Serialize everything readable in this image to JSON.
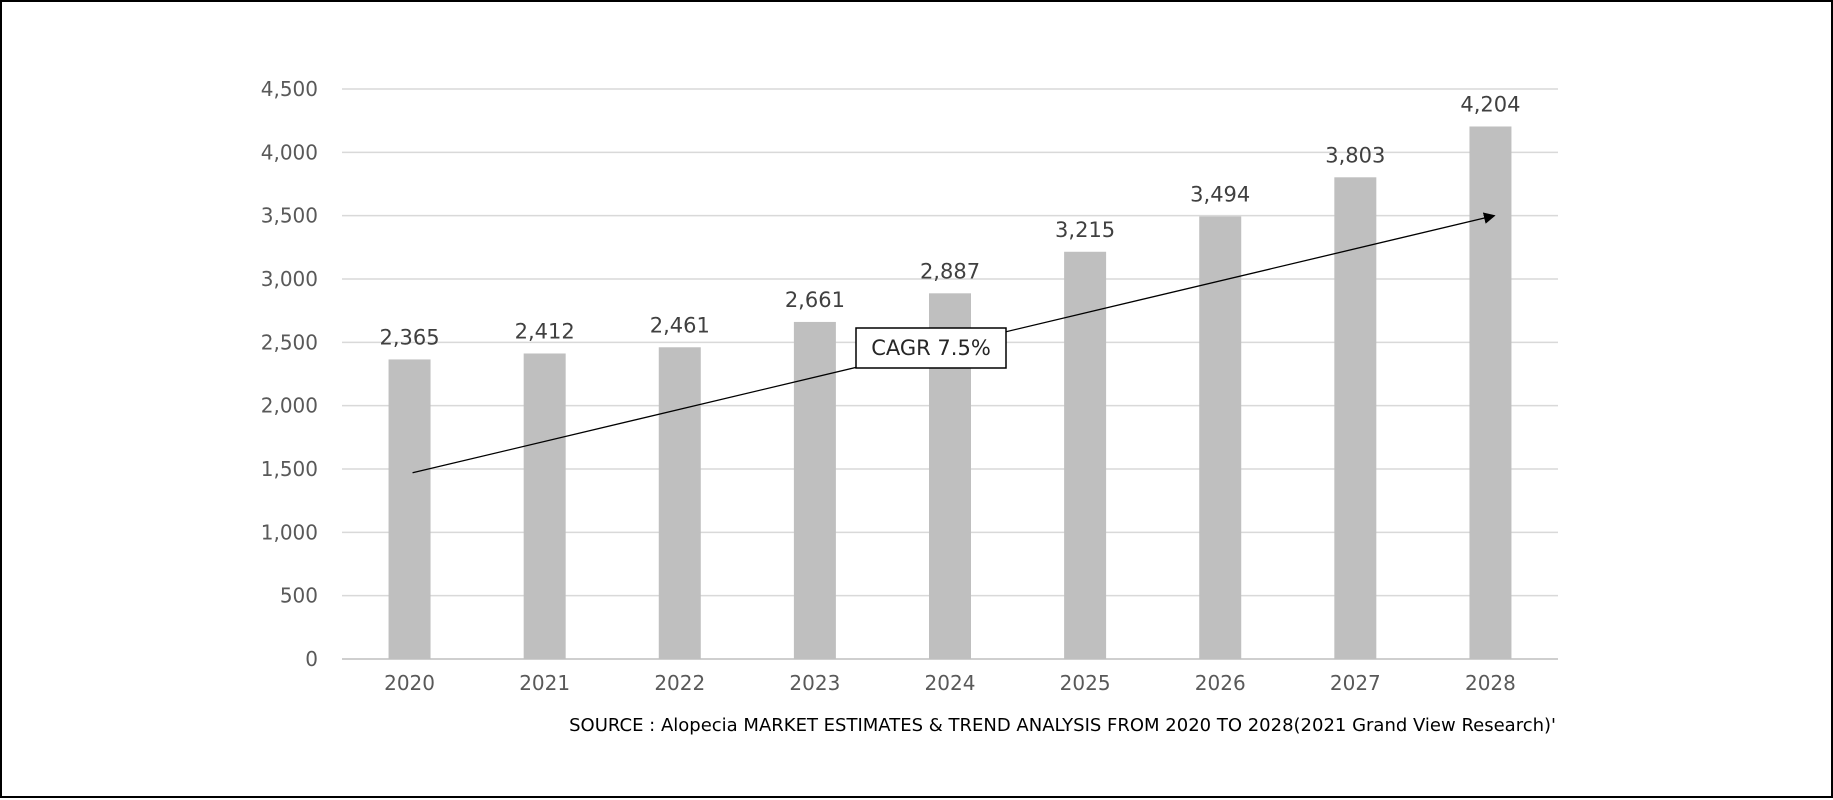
{
  "chart_data": {
    "type": "bar",
    "categories": [
      "2020",
      "2021",
      "2022",
      "2023",
      "2024",
      "2025",
      "2026",
      "2027",
      "2028"
    ],
    "values": [
      2365,
      2412,
      2461,
      2661,
      2887,
      3215,
      3494,
      3803,
      4204
    ],
    "data_labels": [
      "2,365",
      "2,412",
      "2,461",
      "2,661",
      "2,887",
      "3,215",
      "3,494",
      "3,803",
      "4,204"
    ],
    "y_ticks": [
      0,
      500,
      1000,
      1500,
      2000,
      2500,
      3000,
      3500,
      4000,
      4500
    ],
    "y_tick_labels": [
      "0",
      "500",
      "1,000",
      "1,500",
      "2,000",
      "2,500",
      "3,000",
      "3,500",
      "4,000",
      "4,500"
    ],
    "ylim": [
      0,
      4500
    ],
    "grid": true,
    "legend": "none",
    "title": "",
    "xlabel": "",
    "ylabel": "",
    "bar_color": "#bfbfbf",
    "annotation": {
      "text": "CAGR 7.5%",
      "arrow_from": {
        "x": "2020",
        "y": 1470
      },
      "arrow_to": {
        "x": "2028",
        "y": 3500
      }
    },
    "source": "SOURCE : Alopecia MARKET ESTIMATES & TREND ANALYSIS FROM 2020 TO 2028(2021 Grand View Research)'"
  }
}
